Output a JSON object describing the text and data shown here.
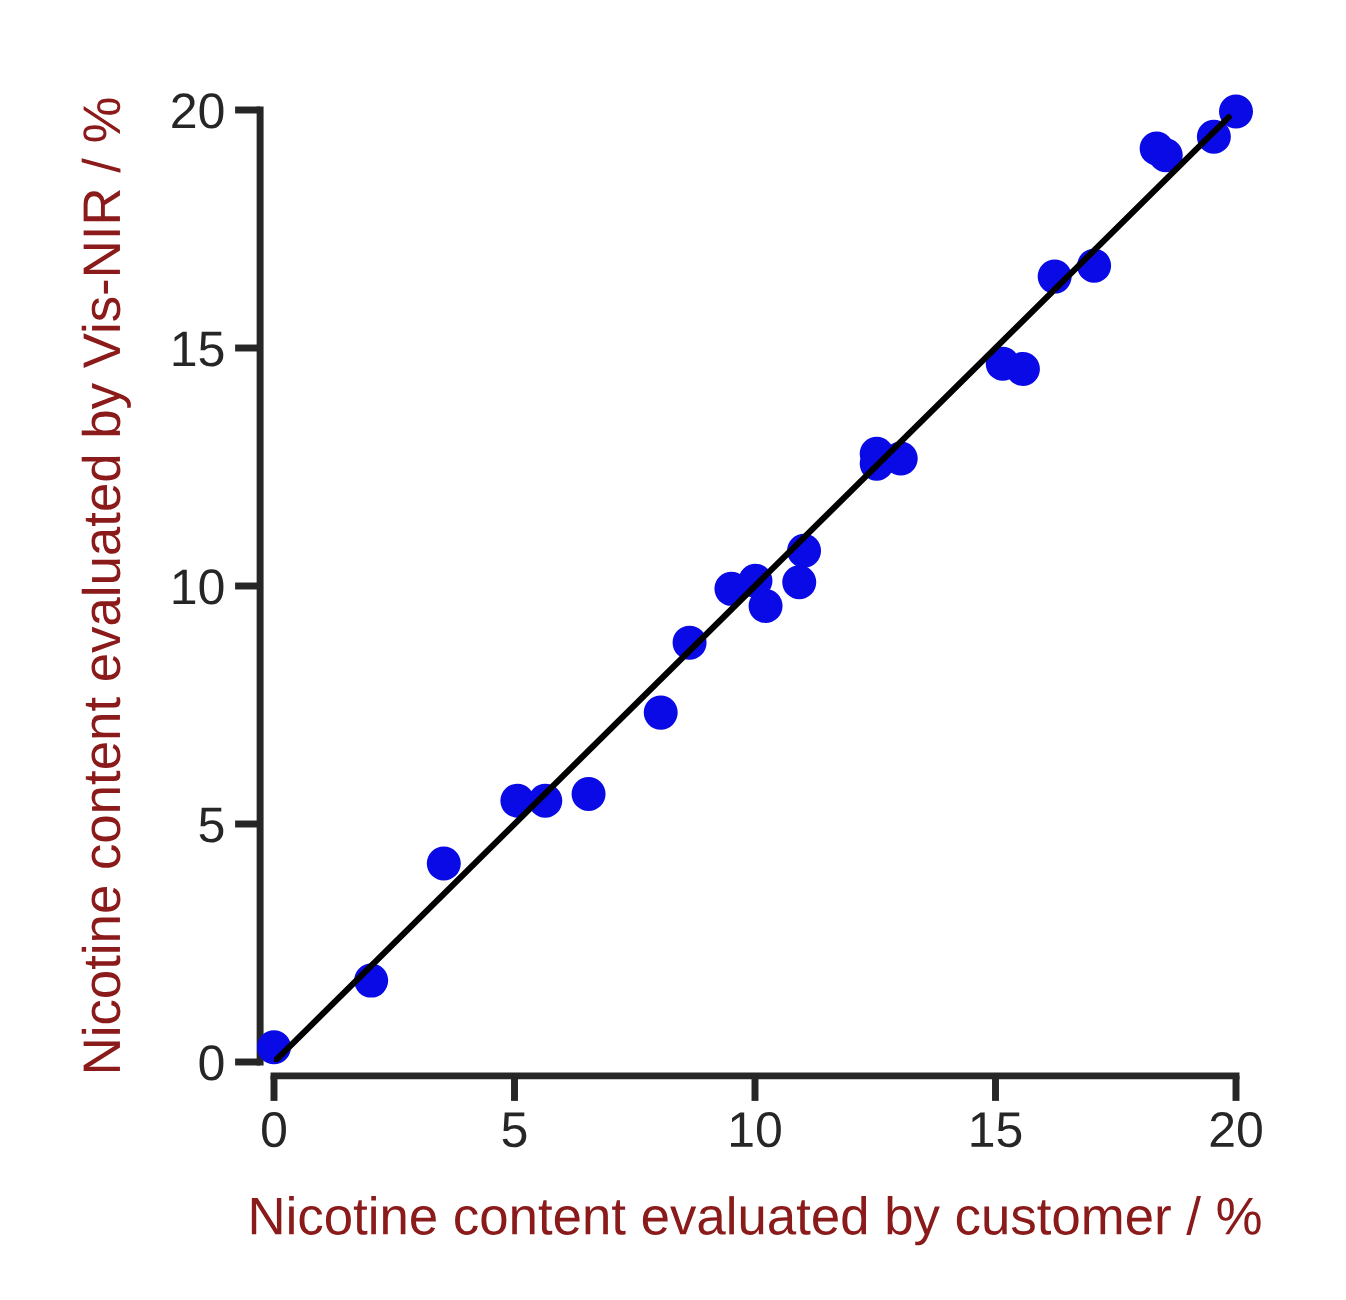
{
  "chart_data": {
    "type": "scatter",
    "xlabel": "Nicotine content evaluated by customer / %",
    "ylabel": "Nicotine content evaluated by Vis-NIR / %",
    "xlim": [
      0,
      20
    ],
    "ylim": [
      0,
      20
    ],
    "xticks": [
      0,
      5,
      10,
      15,
      20
    ],
    "yticks": [
      0,
      5,
      10,
      15,
      20
    ],
    "grid": false,
    "series": [
      {
        "type": "line",
        "color": "#000000",
        "x": [
          0,
          19.85
        ],
        "values": [
          0,
          19.85
        ],
        "line_style": "solid"
      },
      {
        "color": "#0a0ae6",
        "marker": "circle",
        "x": [
          0,
          2.02,
          3.53,
          5.06,
          5.64,
          6.54,
          8.04,
          8.64,
          9.51,
          10.01,
          10.22,
          10.92,
          11.02,
          12.53,
          12.53,
          13.03,
          15.15,
          15.57,
          16.23,
          17.05,
          18.35,
          18.54,
          19.54,
          20
        ],
        "values": [
          0.31,
          1.71,
          4.17,
          5.49,
          5.49,
          5.63,
          7.34,
          8.81,
          9.94,
          10.11,
          9.58,
          10.08,
          10.74,
          12.78,
          12.57,
          12.68,
          14.67,
          14.56,
          16.5,
          16.73,
          19.19,
          19.05,
          19.44,
          19.97
        ]
      }
    ]
  }
}
